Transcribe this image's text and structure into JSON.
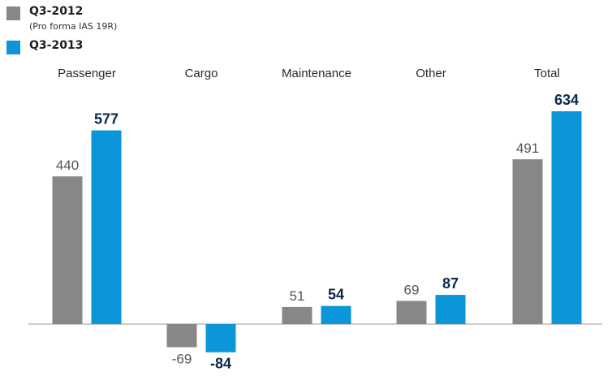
{
  "chart_data": {
    "type": "bar",
    "categories": [
      "Passenger",
      "Cargo",
      "Maintenance",
      "Other",
      "Total"
    ],
    "series": [
      {
        "name": "Q3-2012",
        "note": "(Pro forma IAS 19R)",
        "color": "#878787",
        "values": [
          440,
          -69,
          51,
          69,
          491
        ]
      },
      {
        "name": "Q3-2013",
        "color": "#0a96d9",
        "values": [
          577,
          -84,
          54,
          87,
          634
        ]
      }
    ],
    "value_label_colors": [
      "#555555",
      "#0b2a4a"
    ],
    "title": "",
    "xlabel": "",
    "ylabel": "",
    "grid": false,
    "legend": "top-left"
  }
}
